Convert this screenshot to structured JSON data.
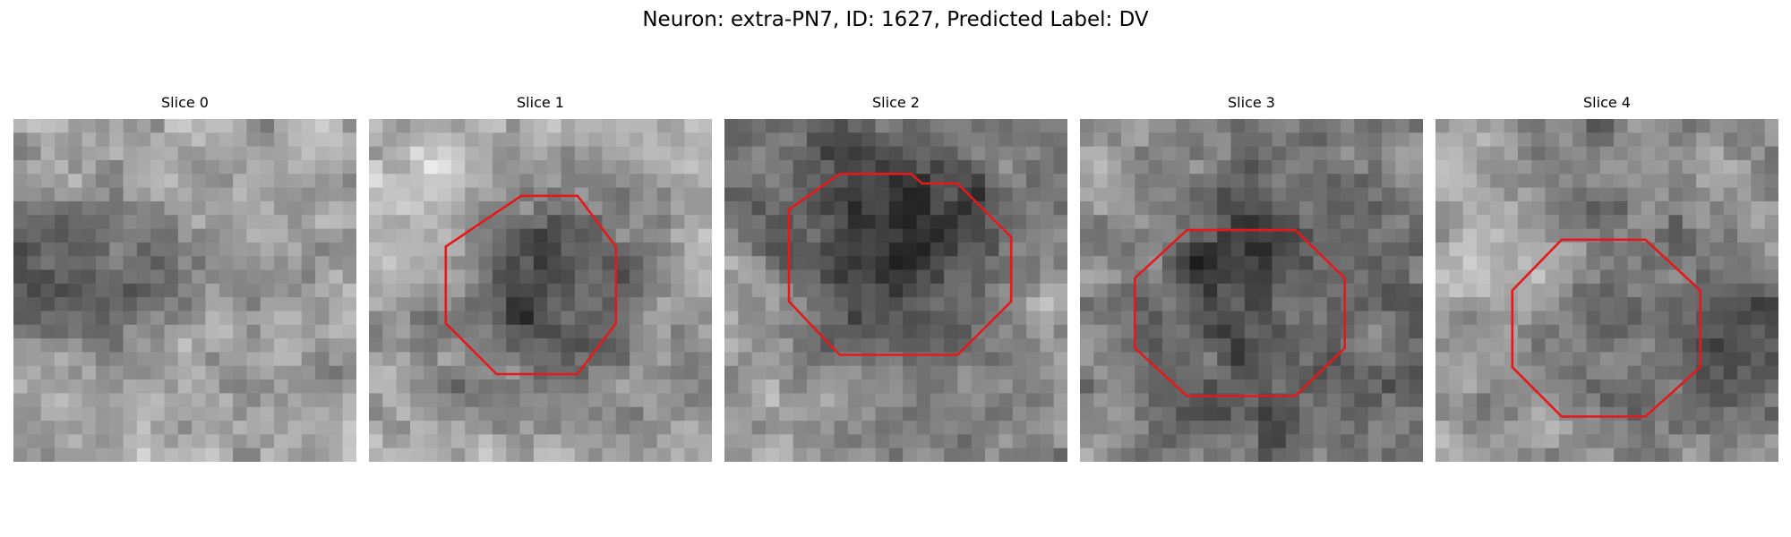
{
  "figure": {
    "title": "Neuron: extra-PN7, ID: 1627, Predicted Label: DV"
  },
  "colors": {
    "background": "#ffffff",
    "contour": "#e31a1c",
    "colormap": "gray"
  },
  "slices": [
    {
      "title": "Slice 0",
      "has_contour": false
    },
    {
      "title": "Slice 1",
      "has_contour": true
    },
    {
      "title": "Slice 2",
      "has_contour": true
    },
    {
      "title": "Slice 3",
      "has_contour": true
    },
    {
      "title": "Slice 4",
      "has_contour": true
    }
  ]
}
